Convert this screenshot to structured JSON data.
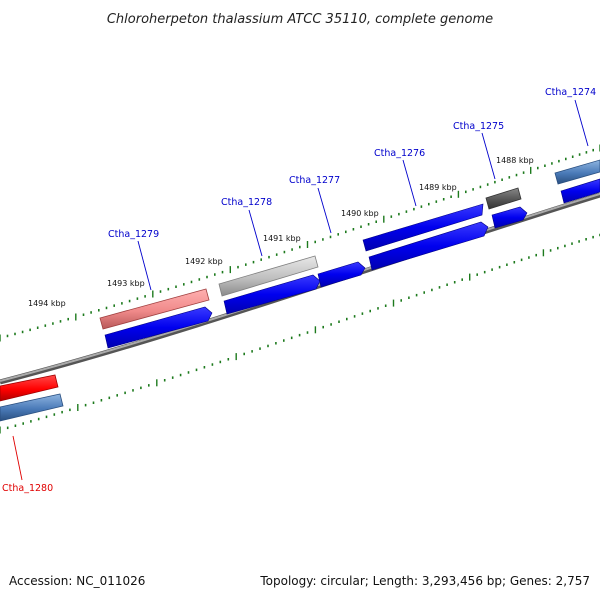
{
  "title": "Chloroherpeton thalassium ATCC 35110, complete genome",
  "footer": {
    "accession": "Accession: NC_011026",
    "summary": "Topology: circular; Length: 3,293,456 bp; Genes: 2,757"
  },
  "scale_labels": [
    "1494 kbp",
    "1493 kbp",
    "1492 kbp",
    "1491 kbp",
    "1490 kbp",
    "1489 kbp",
    "1488 kbp"
  ],
  "genes": [
    {
      "label": "Ctha_1279",
      "color": "#0000cc"
    },
    {
      "label": "Ctha_1278",
      "color": "#0000cc"
    },
    {
      "label": "Ctha_1277",
      "color": "#0000cc"
    },
    {
      "label": "Ctha_1276",
      "color": "#0000cc"
    },
    {
      "label": "Ctha_1275",
      "color": "#0000cc"
    },
    {
      "label": "Ctha_1274",
      "color": "#0000cc"
    },
    {
      "label": "Ctha_1280",
      "color": "#e00000"
    }
  ],
  "colors": {
    "backbone": "#777777",
    "tick": "#1d7a1d",
    "cds_blue": "#0000ee",
    "gene_pink": "#f08a8a",
    "gene_red": "#ff0000",
    "gene_gray": "#c0c0c0",
    "gene_dark": "#555555",
    "gene_steel": "#4a7ab8"
  }
}
